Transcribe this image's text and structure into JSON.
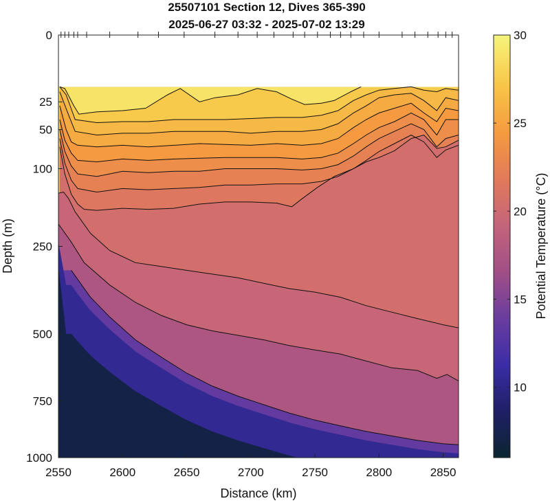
{
  "chart_data": {
    "type": "contour",
    "title": "25507101 Section 12, Dives 365-390",
    "subtitle": "2025-06-27 03:32 - 2025-07-02 13:29",
    "xlabel": "Distance (km)",
    "ylabel": "Depth (m)",
    "colorbar_label": "Potential Temperature (°C)",
    "xlim": [
      2550,
      2862
    ],
    "ylim": [
      0,
      1000
    ],
    "y_scale": "sqrt",
    "xticks": [
      "2550",
      "2600",
      "2650",
      "2700",
      "2750",
      "2800",
      "2850"
    ],
    "yticks": [
      "0",
      "25",
      "50",
      "100",
      "250",
      "500",
      "750",
      "1000"
    ],
    "colorbar_ticks": [
      "10",
      "15",
      "20",
      "25",
      "30"
    ],
    "colorbar_range": [
      6,
      30
    ],
    "colormap": [
      "#0b2530",
      "#1f1f66",
      "#3b2da6",
      "#6a3d9f",
      "#a04f86",
      "#c4647a",
      "#e27a5a",
      "#f59b3f",
      "#f8c547",
      "#f6f57c"
    ],
    "dive_marker_x": [
      2552,
      2555,
      2558,
      2562,
      2565,
      2572,
      2590,
      2612,
      2628,
      2648,
      2672,
      2690,
      2705,
      2718,
      2733,
      2742,
      2752,
      2762,
      2770,
      2778,
      2788,
      2800,
      2818,
      2828,
      2838,
      2846,
      2852,
      2857
    ],
    "data_top_depth": 15,
    "isotherms": [
      {
        "level": 28,
        "x": [
          2551,
          2555,
          2562,
          2566,
          2580,
          2600,
          2618,
          2635,
          2645,
          2660,
          2672,
          2690,
          2705,
          2720,
          2732,
          2742,
          2755,
          2765,
          2778,
          2786
        ],
        "y": [
          15,
          16,
          28,
          35,
          33,
          32,
          30,
          20,
          16,
          25,
          22,
          20,
          16,
          18,
          23,
          27,
          26,
          24,
          18,
          15
        ]
      },
      {
        "level": 27,
        "x": [
          2551,
          2556,
          2563,
          2580,
          2600,
          2620,
          2640,
          2660,
          2680,
          2700,
          2720,
          2740,
          2755,
          2768,
          2780,
          2790,
          2800,
          2812,
          2825,
          2835,
          2845,
          2852,
          2862
        ],
        "y": [
          15,
          20,
          40,
          43,
          42,
          42,
          40,
          40,
          40,
          39,
          38,
          38,
          36,
          32,
          24,
          20,
          17,
          16,
          15,
          17,
          18,
          16,
          17
        ]
      },
      {
        "level": 26,
        "x": [
          2551,
          2558,
          2563,
          2580,
          2600,
          2620,
          2640,
          2660,
          2680,
          2700,
          2720,
          2740,
          2755,
          2768,
          2780,
          2790,
          2800,
          2812,
          2825,
          2835,
          2845,
          2852,
          2862
        ],
        "y": [
          18,
          36,
          52,
          56,
          54,
          54,
          52,
          52,
          52,
          54,
          52,
          52,
          50,
          44,
          34,
          28,
          22,
          20,
          19,
          24,
          32,
          22,
          24
        ]
      },
      {
        "level": 25,
        "x": [
          2551,
          2556,
          2560,
          2565,
          2580,
          2600,
          2620,
          2640,
          2660,
          2680,
          2700,
          2720,
          2740,
          2755,
          2768,
          2780,
          2790,
          2800,
          2812,
          2825,
          2835,
          2845,
          2852,
          2862
        ],
        "y": [
          28,
          50,
          64,
          68,
          70,
          68,
          70,
          68,
          66,
          67,
          68,
          66,
          68,
          66,
          60,
          48,
          40,
          34,
          30,
          26,
          34,
          42,
          30,
          32
        ]
      },
      {
        "level": 24,
        "x": [
          2551,
          2555,
          2560,
          2565,
          2580,
          2600,
          2620,
          2640,
          2660,
          2680,
          2700,
          2720,
          2740,
          2755,
          2768,
          2780,
          2790,
          2800,
          2812,
          2825,
          2835,
          2845,
          2852,
          2862
        ],
        "y": [
          40,
          62,
          78,
          88,
          90,
          86,
          88,
          86,
          85,
          84,
          84,
          84,
          86,
          84,
          78,
          66,
          56,
          48,
          42,
          34,
          40,
          56,
          40,
          40
        ]
      },
      {
        "level": 23,
        "x": [
          2551,
          2555,
          2560,
          2565,
          2580,
          2600,
          2620,
          2640,
          2660,
          2680,
          2700,
          2720,
          2740,
          2755,
          2768,
          2780,
          2790,
          2800,
          2812,
          2825,
          2835,
          2845,
          2852,
          2862
        ],
        "y": [
          50,
          76,
          96,
          108,
          112,
          104,
          106,
          104,
          104,
          100,
          100,
          100,
          102,
          100,
          94,
          82,
          70,
          60,
          52,
          44,
          50,
          70,
          60,
          56
        ]
      },
      {
        "level": 22,
        "x": [
          2551,
          2555,
          2560,
          2565,
          2580,
          2600,
          2620,
          2640,
          2660,
          2680,
          2700,
          2720,
          2740,
          2755,
          2768,
          2780,
          2790,
          2800,
          2812,
          2825,
          2835,
          2845,
          2852,
          2862
        ],
        "y": [
          60,
          92,
          118,
          132,
          138,
          132,
          134,
          132,
          130,
          126,
          126,
          124,
          124,
          120,
          112,
          100,
          88,
          76,
          66,
          56,
          64,
          84,
          74,
          68
        ]
      },
      {
        "level": 21,
        "x": [
          2551,
          2555,
          2560,
          2565,
          2570,
          2580,
          2600,
          2620,
          2640,
          2660,
          2680,
          2700,
          2720,
          2732,
          2740,
          2752,
          2765,
          2780,
          2790,
          2800,
          2812,
          2825,
          2835,
          2845,
          2852,
          2862
        ],
        "y": [
          70,
          108,
          142,
          160,
          170,
          172,
          168,
          170,
          168,
          160,
          156,
          156,
          158,
          165,
          150,
          130,
          112,
          100,
          90,
          84,
          75,
          60,
          56,
          72,
          70,
          62
        ]
      },
      {
        "level": 20,
        "x": [
          2550,
          2554,
          2558,
          2563,
          2575,
          2590,
          2610,
          2630,
          2650,
          2670,
          2690,
          2710,
          2730,
          2750,
          2770,
          2790,
          2810,
          2830,
          2850,
          2862
        ],
        "y": [
          140,
          138,
          150,
          175,
          220,
          260,
          290,
          300,
          310,
          320,
          330,
          345,
          360,
          370,
          385,
          410,
          430,
          450,
          470,
          480
        ]
      },
      {
        "level": 18,
        "x": [
          2550,
          2560,
          2570,
          2590,
          2610,
          2630,
          2650,
          2670,
          2690,
          2710,
          2730,
          2750,
          2770,
          2790,
          2810,
          2830,
          2845,
          2853,
          2862
        ],
        "y": [
          200,
          240,
          290,
          350,
          400,
          440,
          470,
          490,
          505,
          520,
          540,
          555,
          570,
          595,
          620,
          630,
          660,
          645,
          670
        ]
      },
      {
        "level": 14,
        "x": [
          2560,
          2575,
          2590,
          2610,
          2630,
          2650,
          2670,
          2690,
          2710,
          2730,
          2750,
          2770,
          2790,
          2810,
          2830,
          2850,
          2862
        ],
        "y": [
          310,
          385,
          445,
          520,
          580,
          640,
          690,
          730,
          765,
          800,
          830,
          855,
          880,
          900,
          920,
          935,
          940
        ]
      }
    ]
  }
}
